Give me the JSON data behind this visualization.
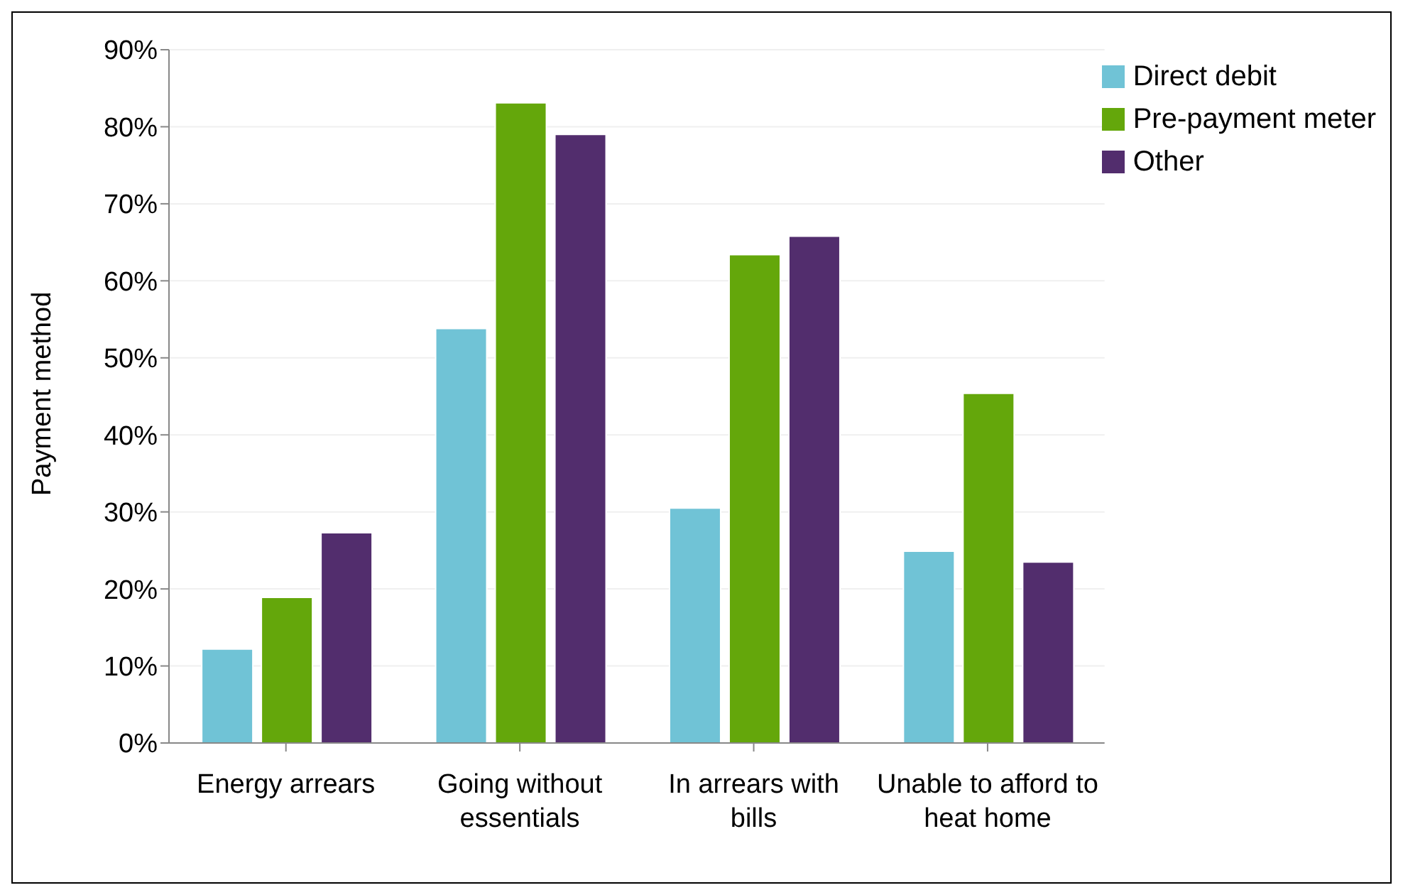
{
  "chart_data": {
    "type": "bar",
    "ylabel": "Payment method",
    "categories": [
      "Energy arrears",
      "Going without essentials",
      "In arrears with bills",
      "Unable to afford to heat home"
    ],
    "series": [
      {
        "name": "Direct debit",
        "color": "#70c3d6",
        "values": [
          12.2,
          53.8,
          30.5,
          24.9
        ]
      },
      {
        "name": "Pre-payment meter",
        "color": "#64a70b",
        "values": [
          18.9,
          83.1,
          63.4,
          45.4
        ]
      },
      {
        "name": "Other",
        "color": "#522d6d",
        "values": [
          27.3,
          79.0,
          65.8,
          23.5
        ]
      }
    ],
    "ylim": [
      0,
      90
    ],
    "yticks": [
      {
        "value": 0,
        "label": "0%"
      },
      {
        "value": 10,
        "label": "10%"
      },
      {
        "value": 20,
        "label": "20%"
      },
      {
        "value": 30,
        "label": "30%"
      },
      {
        "value": 40,
        "label": "40%"
      },
      {
        "value": 50,
        "label": "50%"
      },
      {
        "value": 60,
        "label": "60%"
      },
      {
        "value": 70,
        "label": "70%"
      },
      {
        "value": 80,
        "label": "80%"
      },
      {
        "value": 90,
        "label": "90%"
      }
    ],
    "grid": "y",
    "legend": "top right"
  }
}
